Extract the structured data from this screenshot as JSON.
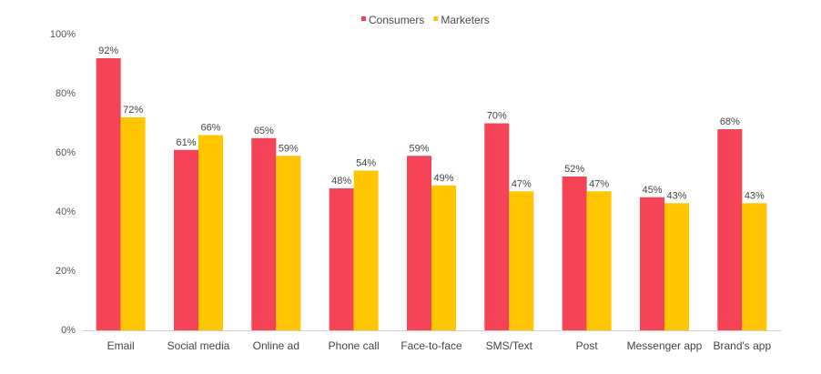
{
  "chart_data": {
    "type": "bar",
    "categories": [
      "Email",
      "Social media",
      "Online ad",
      "Phone call",
      "Face-to-face",
      "SMS/Text",
      "Post",
      "Messenger app",
      "Brand's app"
    ],
    "series": [
      {
        "name": "Consumers",
        "color": "#F54457",
        "values": [
          92,
          61,
          65,
          48,
          59,
          70,
          52,
          45,
          68
        ]
      },
      {
        "name": "Marketers",
        "color": "#FFC600",
        "values": [
          72,
          66,
          59,
          54,
          49,
          47,
          47,
          43,
          43
        ]
      }
    ],
    "ylim": [
      0,
      100
    ],
    "yticks": [
      0,
      20,
      40,
      60,
      80,
      100
    ],
    "value_suffix": "%",
    "grid": false,
    "legend_position": "top-center",
    "xlabel": "",
    "ylabel": ""
  }
}
